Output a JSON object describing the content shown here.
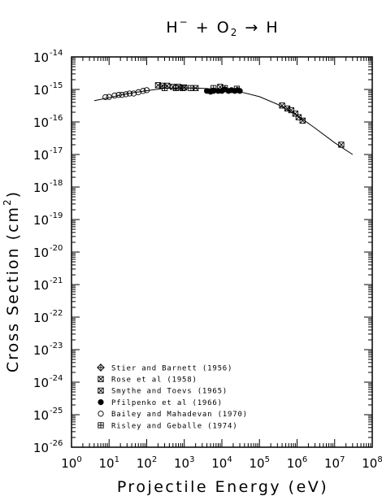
{
  "chart_data": {
    "type": "scatter",
    "title": {
      "main": "H",
      "sup": "−",
      "rest": " + O",
      "sub": "2",
      "arrow": " → H"
    },
    "xlabel": "Projectile Energy (eV)",
    "ylabel": {
      "main": "Cross Section (cm",
      "sup": "2",
      "end": ")"
    },
    "x_scale": "log",
    "y_scale": "log",
    "xlim": [
      1,
      100000000
    ],
    "ylim": [
      1e-26,
      1e-14
    ],
    "x_tick_exponents": [
      "0",
      "1",
      "2",
      "3",
      "4",
      "5",
      "6",
      "7",
      "8"
    ],
    "y_tick_exponents": [
      "-14",
      "-15",
      "-16",
      "-17",
      "-18",
      "-19",
      "-20",
      "-21",
      "-22",
      "-23",
      "-24",
      "-25",
      "-26"
    ],
    "tick_base": "10",
    "grid": false,
    "legend_position": "bottom-left",
    "series": [
      {
        "name": "Stier and Barnett (1956)",
        "marker": "diamond-cross",
        "points": []
      },
      {
        "name": "Rose et al (1958)",
        "marker": "square-x",
        "points": [
          [
            200,
            1.35e-15
          ],
          [
            260,
            1.3e-15
          ],
          [
            350,
            1.3e-15
          ],
          [
            500,
            1.2e-15
          ],
          [
            700,
            1.2e-15
          ],
          [
            1000,
            1.15e-15
          ],
          [
            2000,
            1.1e-15
          ],
          [
            9000,
            1.2e-15
          ]
        ]
      },
      {
        "name": "Smythe and Toevs (1965)",
        "marker": "square-x",
        "points": [
          [
            400000,
            3.2e-16
          ],
          [
            550000,
            2.6e-16
          ],
          [
            700000,
            2.3e-16
          ],
          [
            900000,
            1.8e-16
          ],
          [
            1100000,
            1.4e-16
          ],
          [
            1400000,
            1.1e-16
          ],
          [
            15000000,
            2e-17
          ]
        ]
      },
      {
        "name": "Pfilpenko et al (1966)",
        "marker": "filled-circle",
        "points": [
          [
            4000,
            9e-16
          ],
          [
            5000,
            8.5e-16
          ],
          [
            6000,
            9e-16
          ],
          [
            8000,
            9e-16
          ],
          [
            10000,
            9e-16
          ],
          [
            12000,
            1e-15
          ],
          [
            15000,
            9e-16
          ],
          [
            18000,
            9.5e-16
          ],
          [
            22000,
            9e-16
          ],
          [
            26000,
            9.5e-16
          ],
          [
            30000,
            9e-16
          ]
        ]
      },
      {
        "name": "Bailey and Mahadevan (1970)",
        "marker": "circle",
        "points": [
          [
            8,
            5.8e-16
          ],
          [
            10,
            5.9e-16
          ],
          [
            14,
            6.5e-16
          ],
          [
            18,
            6.8e-16
          ],
          [
            22,
            6.8e-16
          ],
          [
            28,
            7.1e-16
          ],
          [
            35,
            7.5e-16
          ],
          [
            45,
            7.5e-16
          ],
          [
            60,
            8.2e-16
          ],
          [
            80,
            9e-16
          ],
          [
            100,
            9.5e-16
          ]
        ]
      },
      {
        "name": "Risley and Geballe (1974)",
        "marker": "square-plus",
        "points": [
          [
            300,
            1.1e-15
          ],
          [
            600,
            1.1e-15
          ],
          [
            900,
            1.1e-15
          ],
          [
            1500,
            1.1e-15
          ],
          [
            6000,
            1.1e-15
          ],
          [
            12000,
            1.1e-15
          ],
          [
            25000,
            1.05e-15
          ]
        ]
      }
    ],
    "fit_curve": {
      "x": [
        4,
        10,
        30,
        100,
        300,
        1000,
        3000,
        10000,
        30000,
        100000,
        300000,
        1000000,
        3000000,
        10000000,
        30000000
      ],
      "y": [
        4.5e-16,
        5.6e-16,
        7.4e-16,
        9.2e-16,
        1.08e-15,
        1.12e-15,
        1.08e-15,
        1e-15,
        8.5e-16,
        6e-16,
        3.5e-16,
        1.6e-16,
        6.5e-17,
        2.3e-17,
        1e-17
      ]
    }
  }
}
